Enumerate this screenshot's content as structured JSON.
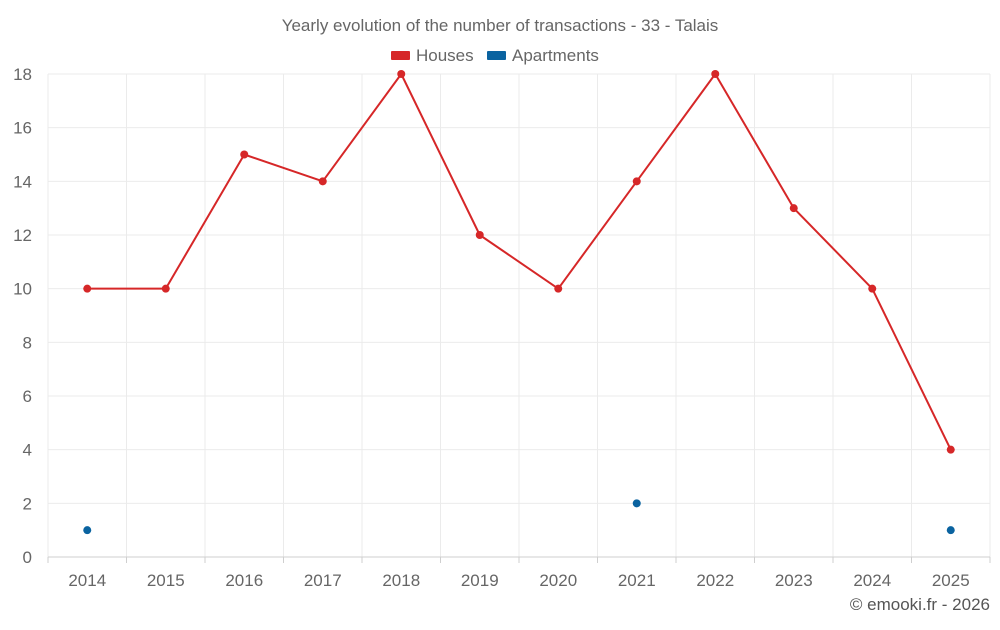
{
  "chart_data": {
    "type": "line",
    "title": "Yearly evolution of the number of transactions - 33 - Talais",
    "categories": [
      "2014",
      "2015",
      "2016",
      "2017",
      "2018",
      "2019",
      "2020",
      "2021",
      "2022",
      "2023",
      "2024",
      "2025"
    ],
    "series": [
      {
        "name": "Houses",
        "color": "#d62728",
        "values": [
          10,
          10,
          15,
          14,
          18,
          12,
          10,
          14,
          18,
          13,
          10,
          4
        ]
      },
      {
        "name": "Apartments",
        "color": "#0a63a0",
        "values": [
          1,
          null,
          null,
          null,
          null,
          null,
          null,
          2,
          null,
          null,
          null,
          1
        ]
      }
    ],
    "ylim": [
      0,
      18
    ],
    "yticks": [
      0,
      2,
      4,
      6,
      8,
      10,
      12,
      14,
      16,
      18
    ],
    "xlabel": "",
    "ylabel": "",
    "grid": true,
    "legend_position": "top-center"
  },
  "credit": "© emooki.fr - 2026"
}
